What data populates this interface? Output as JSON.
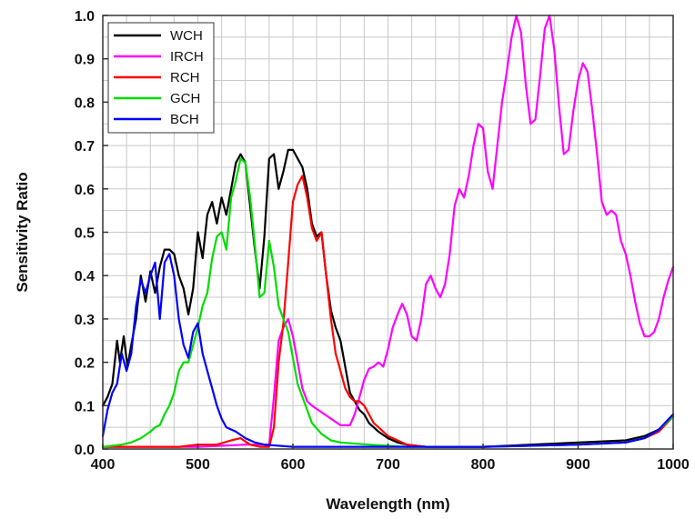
{
  "chart_data": {
    "type": "line",
    "title": "",
    "xlabel": "Wavelength (nm)",
    "ylabel": "Sensitivity Ratio",
    "xlim": [
      400,
      1000
    ],
    "ylim": [
      0,
      1.0
    ],
    "x_ticks": [
      "400",
      "500",
      "600",
      "700",
      "800",
      "900",
      "1000"
    ],
    "y_ticks": [
      "0.0",
      "0.1",
      "0.2",
      "0.3",
      "0.4",
      "0.5",
      "0.6",
      "0.7",
      "0.8",
      "0.9",
      "1.0"
    ],
    "grid": true,
    "legend_position": "top-left",
    "series": [
      {
        "name": "WCH",
        "color": "#000000",
        "points": [
          [
            400,
            0.1
          ],
          [
            405,
            0.12
          ],
          [
            410,
            0.15
          ],
          [
            415,
            0.25
          ],
          [
            418,
            0.2
          ],
          [
            422,
            0.26
          ],
          [
            426,
            0.19
          ],
          [
            430,
            0.24
          ],
          [
            435,
            0.3
          ],
          [
            440,
            0.4
          ],
          [
            445,
            0.34
          ],
          [
            450,
            0.41
          ],
          [
            455,
            0.36
          ],
          [
            460,
            0.42
          ],
          [
            465,
            0.46
          ],
          [
            470,
            0.46
          ],
          [
            475,
            0.45
          ],
          [
            480,
            0.4
          ],
          [
            485,
            0.37
          ],
          [
            490,
            0.31
          ],
          [
            495,
            0.37
          ],
          [
            500,
            0.5
          ],
          [
            505,
            0.44
          ],
          [
            510,
            0.54
          ],
          [
            515,
            0.57
          ],
          [
            520,
            0.52
          ],
          [
            525,
            0.58
          ],
          [
            530,
            0.54
          ],
          [
            535,
            0.6
          ],
          [
            540,
            0.66
          ],
          [
            545,
            0.68
          ],
          [
            550,
            0.66
          ],
          [
            555,
            0.56
          ],
          [
            560,
            0.46
          ],
          [
            565,
            0.37
          ],
          [
            570,
            0.49
          ],
          [
            575,
            0.67
          ],
          [
            580,
            0.68
          ],
          [
            585,
            0.6
          ],
          [
            590,
            0.64
          ],
          [
            595,
            0.69
          ],
          [
            600,
            0.69
          ],
          [
            605,
            0.67
          ],
          [
            610,
            0.65
          ],
          [
            615,
            0.6
          ],
          [
            620,
            0.52
          ],
          [
            625,
            0.49
          ],
          [
            630,
            0.5
          ],
          [
            635,
            0.4
          ],
          [
            640,
            0.32
          ],
          [
            645,
            0.28
          ],
          [
            650,
            0.25
          ],
          [
            655,
            0.19
          ],
          [
            660,
            0.13
          ],
          [
            665,
            0.11
          ],
          [
            670,
            0.09
          ],
          [
            675,
            0.08
          ],
          [
            680,
            0.06
          ],
          [
            690,
            0.04
          ],
          [
            700,
            0.025
          ],
          [
            710,
            0.015
          ],
          [
            720,
            0.01
          ],
          [
            740,
            0.005
          ],
          [
            760,
            0.005
          ],
          [
            800,
            0.005
          ],
          [
            850,
            0.01
          ],
          [
            900,
            0.015
          ],
          [
            950,
            0.02
          ],
          [
            970,
            0.03
          ],
          [
            985,
            0.045
          ],
          [
            1000,
            0.075
          ]
        ]
      },
      {
        "name": "IRCH",
        "color": "#ff00ff",
        "points": [
          [
            400,
            0.005
          ],
          [
            500,
            0.005
          ],
          [
            550,
            0.01
          ],
          [
            575,
            0.01
          ],
          [
            580,
            0.12
          ],
          [
            585,
            0.25
          ],
          [
            590,
            0.28
          ],
          [
            595,
            0.3
          ],
          [
            600,
            0.26
          ],
          [
            605,
            0.2
          ],
          [
            610,
            0.14
          ],
          [
            615,
            0.11
          ],
          [
            620,
            0.1
          ],
          [
            630,
            0.085
          ],
          [
            640,
            0.07
          ],
          [
            650,
            0.055
          ],
          [
            660,
            0.055
          ],
          [
            665,
            0.08
          ],
          [
            670,
            0.12
          ],
          [
            675,
            0.16
          ],
          [
            680,
            0.185
          ],
          [
            685,
            0.19
          ],
          [
            690,
            0.2
          ],
          [
            695,
            0.19
          ],
          [
            700,
            0.23
          ],
          [
            705,
            0.28
          ],
          [
            710,
            0.31
          ],
          [
            715,
            0.335
          ],
          [
            720,
            0.31
          ],
          [
            725,
            0.26
          ],
          [
            730,
            0.25
          ],
          [
            735,
            0.3
          ],
          [
            740,
            0.38
          ],
          [
            745,
            0.4
          ],
          [
            750,
            0.37
          ],
          [
            755,
            0.35
          ],
          [
            760,
            0.38
          ],
          [
            765,
            0.45
          ],
          [
            770,
            0.56
          ],
          [
            775,
            0.6
          ],
          [
            780,
            0.58
          ],
          [
            785,
            0.63
          ],
          [
            790,
            0.7
          ],
          [
            795,
            0.75
          ],
          [
            800,
            0.74
          ],
          [
            805,
            0.64
          ],
          [
            810,
            0.6
          ],
          [
            815,
            0.7
          ],
          [
            820,
            0.8
          ],
          [
            825,
            0.87
          ],
          [
            830,
            0.95
          ],
          [
            835,
            1.0
          ],
          [
            840,
            0.96
          ],
          [
            845,
            0.84
          ],
          [
            850,
            0.75
          ],
          [
            855,
            0.76
          ],
          [
            860,
            0.86
          ],
          [
            865,
            0.97
          ],
          [
            870,
            1.0
          ],
          [
            875,
            0.92
          ],
          [
            880,
            0.79
          ],
          [
            885,
            0.68
          ],
          [
            890,
            0.69
          ],
          [
            895,
            0.78
          ],
          [
            900,
            0.85
          ],
          [
            905,
            0.89
          ],
          [
            910,
            0.87
          ],
          [
            915,
            0.78
          ],
          [
            920,
            0.68
          ],
          [
            925,
            0.57
          ],
          [
            930,
            0.54
          ],
          [
            935,
            0.55
          ],
          [
            940,
            0.54
          ],
          [
            945,
            0.48
          ],
          [
            950,
            0.45
          ],
          [
            955,
            0.4
          ],
          [
            960,
            0.34
          ],
          [
            965,
            0.29
          ],
          [
            970,
            0.26
          ],
          [
            975,
            0.26
          ],
          [
            980,
            0.27
          ],
          [
            985,
            0.3
          ],
          [
            990,
            0.35
          ],
          [
            995,
            0.39
          ],
          [
            1000,
            0.42
          ]
        ]
      },
      {
        "name": "RCH",
        "color": "#ff0000",
        "points": [
          [
            400,
            0.005
          ],
          [
            450,
            0.005
          ],
          [
            480,
            0.005
          ],
          [
            500,
            0.01
          ],
          [
            520,
            0.01
          ],
          [
            535,
            0.02
          ],
          [
            545,
            0.025
          ],
          [
            555,
            0.01
          ],
          [
            565,
            0.005
          ],
          [
            575,
            0.005
          ],
          [
            580,
            0.05
          ],
          [
            585,
            0.2
          ],
          [
            590,
            0.29
          ],
          [
            595,
            0.43
          ],
          [
            600,
            0.57
          ],
          [
            605,
            0.61
          ],
          [
            610,
            0.63
          ],
          [
            615,
            0.58
          ],
          [
            620,
            0.51
          ],
          [
            625,
            0.48
          ],
          [
            630,
            0.5
          ],
          [
            635,
            0.4
          ],
          [
            640,
            0.3
          ],
          [
            645,
            0.22
          ],
          [
            650,
            0.18
          ],
          [
            655,
            0.14
          ],
          [
            660,
            0.12
          ],
          [
            665,
            0.11
          ],
          [
            670,
            0.11
          ],
          [
            675,
            0.1
          ],
          [
            680,
            0.08
          ],
          [
            685,
            0.06
          ],
          [
            690,
            0.05
          ],
          [
            700,
            0.03
          ],
          [
            710,
            0.02
          ],
          [
            720,
            0.01
          ],
          [
            740,
            0.005
          ],
          [
            800,
            0.005
          ],
          [
            900,
            0.01
          ],
          [
            950,
            0.015
          ],
          [
            970,
            0.025
          ],
          [
            985,
            0.04
          ],
          [
            1000,
            0.075
          ]
        ]
      },
      {
        "name": "GCH",
        "color": "#00dd00",
        "points": [
          [
            400,
            0.005
          ],
          [
            420,
            0.01
          ],
          [
            430,
            0.015
          ],
          [
            440,
            0.025
          ],
          [
            450,
            0.04
          ],
          [
            455,
            0.05
          ],
          [
            460,
            0.055
          ],
          [
            465,
            0.08
          ],
          [
            470,
            0.1
          ],
          [
            475,
            0.13
          ],
          [
            480,
            0.18
          ],
          [
            485,
            0.2
          ],
          [
            490,
            0.2
          ],
          [
            495,
            0.24
          ],
          [
            500,
            0.28
          ],
          [
            505,
            0.33
          ],
          [
            510,
            0.36
          ],
          [
            515,
            0.44
          ],
          [
            520,
            0.49
          ],
          [
            525,
            0.5
          ],
          [
            530,
            0.46
          ],
          [
            535,
            0.58
          ],
          [
            540,
            0.62
          ],
          [
            545,
            0.67
          ],
          [
            550,
            0.66
          ],
          [
            555,
            0.58
          ],
          [
            560,
            0.47
          ],
          [
            565,
            0.35
          ],
          [
            570,
            0.36
          ],
          [
            575,
            0.48
          ],
          [
            580,
            0.42
          ],
          [
            585,
            0.33
          ],
          [
            590,
            0.3
          ],
          [
            595,
            0.27
          ],
          [
            600,
            0.21
          ],
          [
            605,
            0.15
          ],
          [
            610,
            0.12
          ],
          [
            615,
            0.09
          ],
          [
            620,
            0.06
          ],
          [
            630,
            0.035
          ],
          [
            640,
            0.02
          ],
          [
            650,
            0.015
          ],
          [
            680,
            0.01
          ],
          [
            720,
            0.005
          ],
          [
            800,
            0.005
          ],
          [
            900,
            0.01
          ],
          [
            950,
            0.015
          ],
          [
            970,
            0.025
          ],
          [
            985,
            0.045
          ],
          [
            1000,
            0.075
          ]
        ]
      },
      {
        "name": "BCH",
        "color": "#0000ff",
        "points": [
          [
            400,
            0.03
          ],
          [
            405,
            0.09
          ],
          [
            410,
            0.13
          ],
          [
            415,
            0.15
          ],
          [
            420,
            0.22
          ],
          [
            425,
            0.18
          ],
          [
            430,
            0.22
          ],
          [
            435,
            0.33
          ],
          [
            440,
            0.39
          ],
          [
            445,
            0.36
          ],
          [
            450,
            0.4
          ],
          [
            455,
            0.43
          ],
          [
            460,
            0.3
          ],
          [
            465,
            0.43
          ],
          [
            470,
            0.45
          ],
          [
            475,
            0.4
          ],
          [
            480,
            0.3
          ],
          [
            485,
            0.24
          ],
          [
            490,
            0.21
          ],
          [
            495,
            0.27
          ],
          [
            500,
            0.29
          ],
          [
            505,
            0.22
          ],
          [
            510,
            0.18
          ],
          [
            515,
            0.14
          ],
          [
            520,
            0.1
          ],
          [
            525,
            0.07
          ],
          [
            530,
            0.05
          ],
          [
            540,
            0.04
          ],
          [
            550,
            0.025
          ],
          [
            560,
            0.015
          ],
          [
            570,
            0.01
          ],
          [
            600,
            0.005
          ],
          [
            700,
            0.005
          ],
          [
            800,
            0.005
          ],
          [
            900,
            0.01
          ],
          [
            950,
            0.015
          ],
          [
            970,
            0.025
          ],
          [
            985,
            0.045
          ],
          [
            1000,
            0.08
          ]
        ]
      }
    ]
  }
}
